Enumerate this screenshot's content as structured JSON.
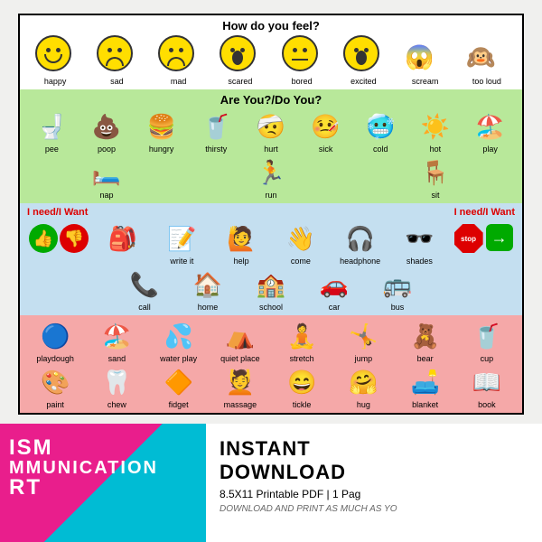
{
  "chart": {
    "feelings": {
      "title": "How do you feel?",
      "items": [
        {
          "label": "happy",
          "type": "face-smile"
        },
        {
          "label": "sad",
          "type": "face-frown"
        },
        {
          "label": "mad",
          "type": "face-mad"
        },
        {
          "label": "scared",
          "type": "face-scared"
        },
        {
          "label": "bored",
          "type": "face-flat"
        },
        {
          "label": "excited",
          "type": "face-excited"
        },
        {
          "label": "scream",
          "emoji": "😱"
        },
        {
          "label": "too loud",
          "emoji": "🙉"
        }
      ]
    },
    "areyou": {
      "title": "Are You?/Do You?",
      "items": [
        {
          "label": "pee",
          "emoji": "🚽"
        },
        {
          "label": "poop",
          "emoji": "💩"
        },
        {
          "label": "hungry",
          "emoji": "🍔"
        },
        {
          "label": "thirsty",
          "emoji": "🥤"
        },
        {
          "label": "hurt",
          "emoji": "🤕"
        },
        {
          "label": "sick",
          "emoji": "🤒"
        },
        {
          "label": "cold",
          "emoji": "🥶"
        },
        {
          "label": "hot",
          "emoji": "☀️"
        },
        {
          "label": "play",
          "emoji": "🏖️"
        },
        {
          "label": "nap",
          "emoji": "🛏️"
        },
        {
          "label": "run",
          "emoji": "🏃"
        },
        {
          "label": "sit",
          "emoji": "🪑"
        }
      ]
    },
    "need": {
      "title_left": "I need/I Want",
      "title_right": "I need/I Want",
      "row1": [
        {
          "label": "",
          "type": "thumbs"
        },
        {
          "label": "",
          "emoji": "🎒"
        },
        {
          "label": "write it",
          "emoji": "📝"
        },
        {
          "label": "help",
          "emoji": "🙋"
        },
        {
          "label": "come",
          "emoji": "👋"
        },
        {
          "label": "headphone",
          "emoji": "🎧"
        },
        {
          "label": "shades",
          "emoji": "🕶️"
        },
        {
          "label": "",
          "type": "stopgo"
        }
      ],
      "row2": [
        {
          "label": "call",
          "emoji": "📞"
        },
        {
          "label": "home",
          "emoji": "🏠"
        },
        {
          "label": "school",
          "emoji": "🏫"
        },
        {
          "label": "car",
          "emoji": "🚗"
        },
        {
          "label": "bus",
          "emoji": "🚌"
        }
      ]
    },
    "activities": {
      "row1": [
        {
          "label": "playdough",
          "emoji": "🔵"
        },
        {
          "label": "sand",
          "emoji": "🏖️"
        },
        {
          "label": "water play",
          "emoji": "💦"
        },
        {
          "label": "quiet place",
          "emoji": "⛺"
        },
        {
          "label": "stretch",
          "emoji": "🧘"
        },
        {
          "label": "jump",
          "emoji": "🤸"
        },
        {
          "label": "bear",
          "emoji": "🧸"
        },
        {
          "label": "cup",
          "emoji": "🥤"
        }
      ],
      "row2": [
        {
          "label": "paint",
          "emoji": "🎨"
        },
        {
          "label": "chew",
          "emoji": "🦷"
        },
        {
          "label": "fidget",
          "emoji": "🔶"
        },
        {
          "label": "massage",
          "emoji": "💆"
        },
        {
          "label": "tickle",
          "emoji": "😄"
        },
        {
          "label": "hug",
          "emoji": "🤗"
        },
        {
          "label": "blanket",
          "emoji": "🛋️"
        },
        {
          "label": "book",
          "emoji": "📖"
        }
      ]
    }
  },
  "footer": {
    "title_line1": "ISM",
    "title_line2": "MMUNICATION",
    "title_line3": "RT",
    "instant": "INSTANT",
    "download": "DOWNLOAD",
    "subtitle": "8.5X11 Printable PDF | 1 Pag",
    "tagline": "DOWNLOAD AND PRINT AS MUCH AS YO"
  },
  "colors": {
    "s1": "#ffffff",
    "s2": "#b8e89a",
    "s3": "#c4dff0",
    "s4": "#f5a8a8",
    "face": "#ffde00",
    "pink": "#e91e8c",
    "cyan": "#00bcd4"
  }
}
